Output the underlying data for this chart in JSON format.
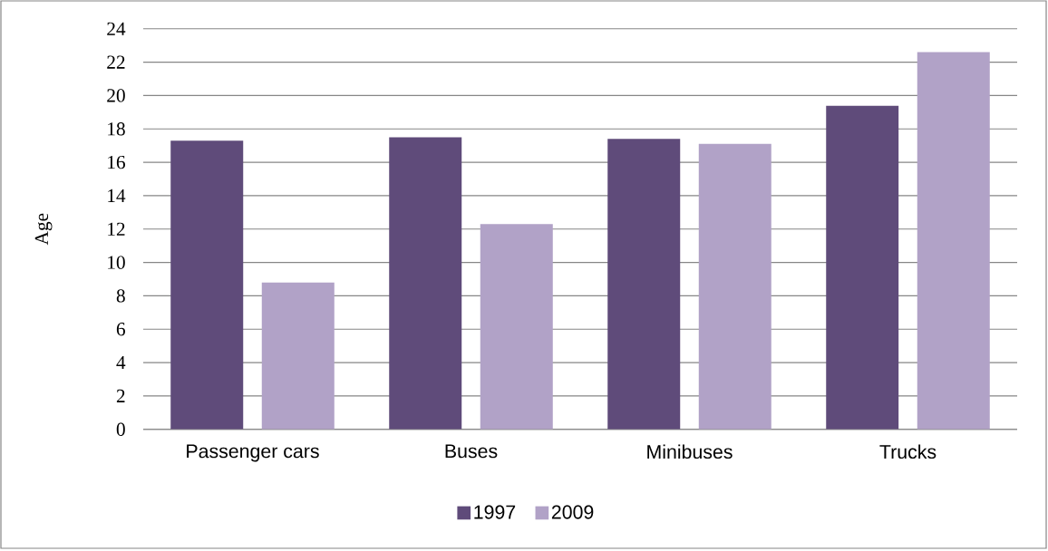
{
  "chart_data": {
    "type": "bar",
    "ylabel": "Age",
    "categories": [
      "Passenger cars",
      "Buses",
      "Minibuses",
      "Trucks"
    ],
    "series": [
      {
        "name": "1997",
        "color": "#5f4b7a",
        "values": [
          17.3,
          17.5,
          17.4,
          19.4
        ]
      },
      {
        "name": "2009",
        "color": "#b1a2c7",
        "values": [
          8.8,
          12.3,
          17.1,
          22.6
        ]
      }
    ],
    "ylim": [
      0,
      24
    ],
    "yticks": [
      0,
      2,
      4,
      6,
      8,
      10,
      12,
      14,
      16,
      18,
      20,
      22,
      24
    ],
    "grid": "y",
    "legend": "bottom"
  }
}
